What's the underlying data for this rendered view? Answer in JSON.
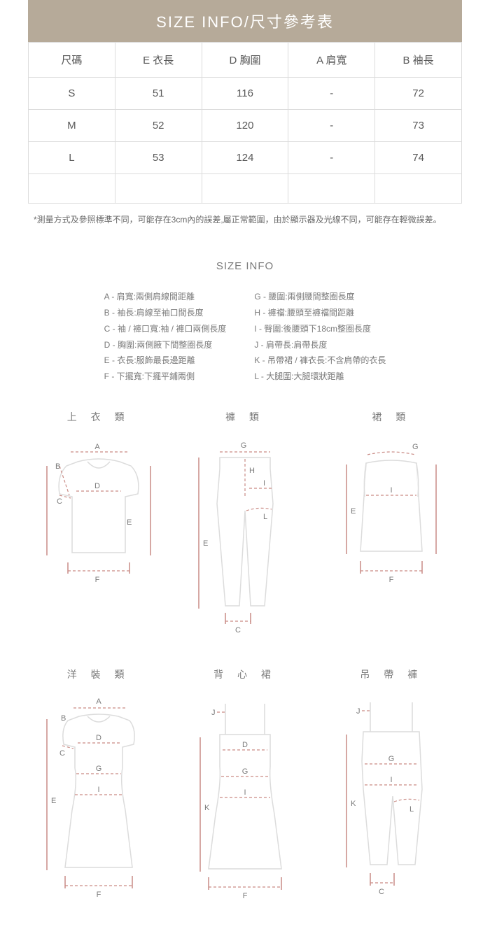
{
  "table": {
    "title": "SIZE  INFO/尺寸參考表",
    "headers": [
      "尺碼",
      "E 衣長",
      "D 胸圍",
      "A 肩寬",
      "B 袖長"
    ],
    "rows": [
      [
        "S",
        "51",
        "116",
        "-",
        "72"
      ],
      [
        "M",
        "52",
        "120",
        "-",
        "73"
      ],
      [
        "L",
        "53",
        "124",
        "-",
        "74"
      ]
    ],
    "note": "*測量方式及參照標準不同，可能存在3cm內的誤差,屬正常範圍，由於顯示器及光線不同，可能存在輕微誤差。"
  },
  "info": {
    "heading": "SIZE INFO",
    "legend_left": [
      "A - 肩寬:兩側肩線間距離",
      "B - 袖長:肩線至袖口間長度",
      "C - 袖 / 褲口寬:袖 / 褲口兩側長度",
      "D - 胸圍:兩側腋下間整圈長度",
      "E - 衣長:服飾最長邊距離",
      "F - 下擺寬:下擺平鋪兩側"
    ],
    "legend_right": [
      "G - 腰圍:兩側腰間整圈長度",
      "H - 褲襠:腰頭至褲襠間距離",
      "I - 臀圍:後腰頭下18cm整圈長度",
      "J - 肩帶長:肩帶長度",
      "K - 吊帶裙 / 褲衣長:不含肩帶的衣長",
      "L - 大腿圍:大腿環狀距離"
    ]
  },
  "diagrams": {
    "top": {
      "title": "上 衣 類"
    },
    "pants": {
      "title": "褲 類"
    },
    "skirt": {
      "title": "裙 類"
    },
    "dress": {
      "title": "洋 裝 類"
    },
    "pinafore": {
      "title": "背 心 裙"
    },
    "overalls": {
      "title": "吊 帶 褲"
    }
  },
  "colors": {
    "header_bg": "#b6aa99",
    "border": "#dcdcdc",
    "text": "#595959",
    "measure": "#c98b85"
  }
}
